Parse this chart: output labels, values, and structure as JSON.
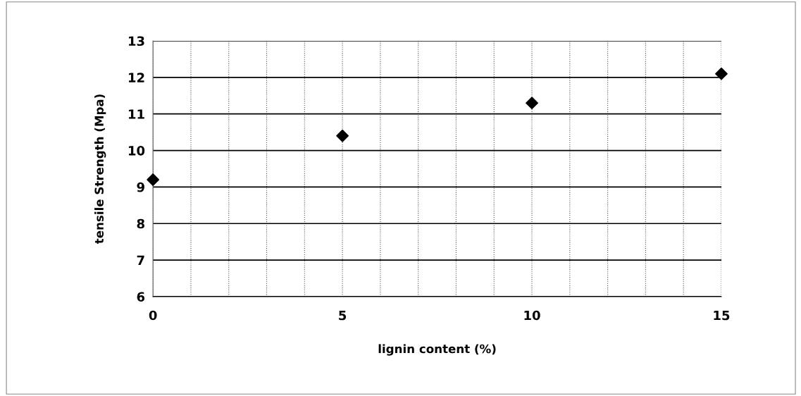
{
  "chart_data": {
    "type": "scatter",
    "xlabel": "lignin content (%)",
    "ylabel": "tensile Strength (Mpa)",
    "x": [
      0,
      5,
      10,
      15
    ],
    "series": [
      {
        "color": "#000000",
        "values": [
          9.2,
          10.4,
          11.3,
          12.1
        ]
      }
    ],
    "marker": "diamond",
    "xlim": [
      0,
      15
    ],
    "xticks": [
      0,
      {
        "value": 1,
        "label": null
      },
      {
        "value": 2,
        "label": null
      },
      {
        "value": 3,
        "label": null
      },
      {
        "value": 4,
        "label": null
      },
      5,
      {
        "value": 6,
        "label": null
      },
      {
        "value": 7,
        "label": null
      },
      {
        "value": 8,
        "label": null
      },
      {
        "value": 9,
        "label": null
      },
      10,
      {
        "value": 11,
        "label": null
      },
      {
        "value": 12,
        "label": null
      },
      {
        "value": 13,
        "label": null
      },
      {
        "value": 14,
        "label": null
      },
      15
    ],
    "ylim": [
      6,
      13
    ],
    "yticks": [
      6,
      7,
      8,
      9,
      10,
      11,
      12,
      13
    ],
    "grid": true
  }
}
